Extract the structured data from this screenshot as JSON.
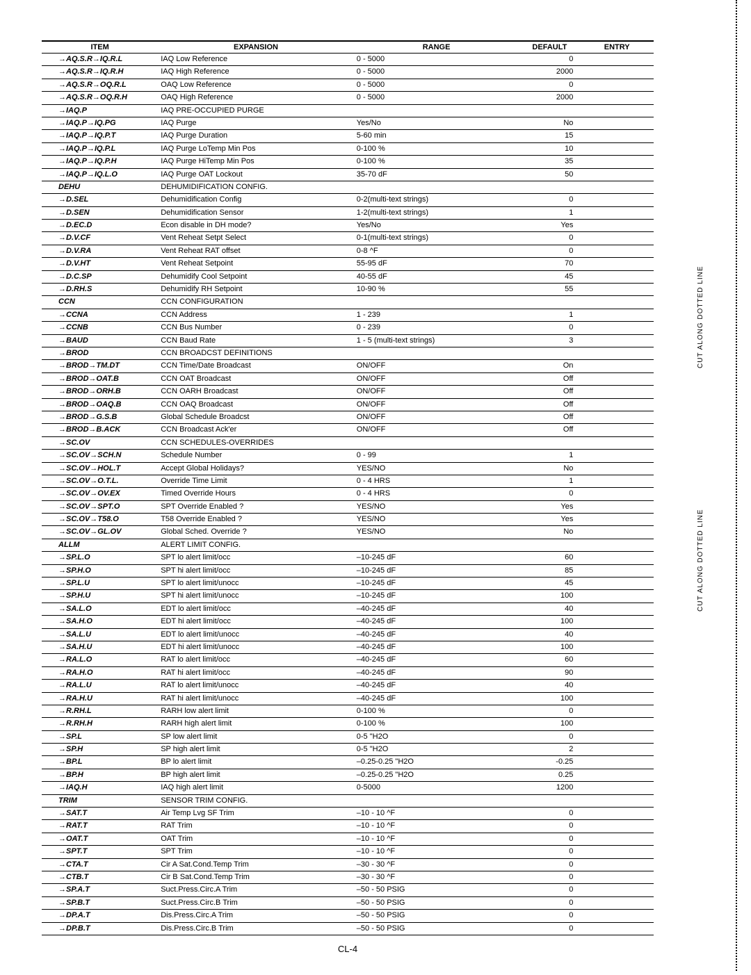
{
  "page_number": "CL-4",
  "cut_label": "CUT ALONG DOTTED LINE",
  "columns": [
    "ITEM",
    "EXPANSION",
    "RANGE",
    "DEFAULT",
    "ENTRY"
  ],
  "rows": [
    {
      "item": "→AQ.S.R→IQ.R.L",
      "exp": "IAQ Low Reference",
      "range": "0 - 5000",
      "def": "0"
    },
    {
      "item": "→AQ.S.R→IQ.R.H",
      "exp": "IAQ High Reference",
      "range": "0 - 5000",
      "def": "2000"
    },
    {
      "item": "→AQ.S.R→OQ.R.L",
      "exp": "OAQ Low Reference",
      "range": "0 - 5000",
      "def": "0"
    },
    {
      "item": "→AQ.S.R→OQ.R.H",
      "exp": "OAQ High Reference",
      "range": "0 - 5000",
      "def": "2000"
    },
    {
      "item": "→IAQ.P",
      "exp": "IAQ PRE-OCCUPIED PURGE",
      "range": "",
      "def": ""
    },
    {
      "item": "→IAQ.P→IQ.PG",
      "exp": "IAQ Purge",
      "range": "Yes/No",
      "def": "No"
    },
    {
      "item": "→IAQ.P→IQ.P.T",
      "exp": "IAQ Purge Duration",
      "range": "5-60 min",
      "def": "15"
    },
    {
      "item": "→IAQ.P→IQ.P.L",
      "exp": "IAQ Purge LoTemp Min Pos",
      "range": "0-100 %",
      "def": "10"
    },
    {
      "item": "→IAQ.P→IQ.P.H",
      "exp": "IAQ Purge HiTemp Min Pos",
      "range": "0-100 %",
      "def": "35"
    },
    {
      "item": "→IAQ.P→IQ.L.O",
      "exp": "IAQ Purge OAT Lockout",
      "range": "35-70 dF",
      "def": "50"
    },
    {
      "item": "DEHU",
      "exp": "DEHUMIDIFICATION CONFIG.",
      "range": "",
      "def": ""
    },
    {
      "item": "→D.SEL",
      "exp": "Dehumidification Config",
      "range": "0-2(multi-text strings)",
      "def": "0"
    },
    {
      "item": "→D.SEN",
      "exp": "Dehumidification Sensor",
      "range": "1-2(multi-text strings)",
      "def": "1"
    },
    {
      "item": "→D.EC.D",
      "exp": "Econ disable in DH mode?",
      "range": "Yes/No",
      "def": "Yes"
    },
    {
      "item": "→D.V.CF",
      "exp": "Vent Reheat Setpt Select",
      "range": "0-1(multi-text strings)",
      "def": "0"
    },
    {
      "item": "→D.V.RA",
      "exp": "Vent Reheat RAT offset",
      "range": "0-8 ^F",
      "def": "0"
    },
    {
      "item": "→D.V.HT",
      "exp": "Vent Reheat Setpoint",
      "range": "55-95 dF",
      "def": "70"
    },
    {
      "item": "→D.C.SP",
      "exp": "Dehumidify Cool Setpoint",
      "range": "40-55 dF",
      "def": "45"
    },
    {
      "item": "→D.RH.S",
      "exp": "Dehumidify RH Setpoint",
      "range": "10-90 %",
      "def": "55"
    },
    {
      "item": "CCN",
      "exp": "CCN CONFIGURATION",
      "range": "",
      "def": ""
    },
    {
      "item": "→CCNA",
      "exp": "CCN Address",
      "range": "1 - 239",
      "def": "1"
    },
    {
      "item": "→CCNB",
      "exp": "CCN Bus Number",
      "range": "0 - 239",
      "def": "0"
    },
    {
      "item": "→BAUD",
      "exp": "CCN Baud Rate",
      "range": "1 - 5 (multi-text strings)",
      "def": "3"
    },
    {
      "item": "→BROD",
      "exp": "CCN BROADCST DEFINITIONS",
      "range": "",
      "def": ""
    },
    {
      "item": "→BROD→TM.DT",
      "exp": "CCN Time/Date Broadcast",
      "range": "ON/OFF",
      "def": "On"
    },
    {
      "item": "→BROD→OAT.B",
      "exp": "CCN OAT Broadcast",
      "range": "ON/OFF",
      "def": "Off"
    },
    {
      "item": "→BROD→ORH.B",
      "exp": "CCN OARH Broadcast",
      "range": "ON/OFF",
      "def": "Off"
    },
    {
      "item": "→BROD→OAQ.B",
      "exp": "CCN OAQ Broadcast",
      "range": "ON/OFF",
      "def": "Off"
    },
    {
      "item": "→BROD→G.S.B",
      "exp": "Global Schedule Broadcst",
      "range": "ON/OFF",
      "def": "Off"
    },
    {
      "item": "→BROD→B.ACK",
      "exp": "CCN Broadcast Ack'er",
      "range": "ON/OFF",
      "def": "Off"
    },
    {
      "item": "→SC.OV",
      "exp": "CCN SCHEDULES-OVERRIDES",
      "range": "",
      "def": ""
    },
    {
      "item": "→SC.OV→SCH.N",
      "exp": "Schedule Number",
      "range": "0 - 99",
      "def": "1"
    },
    {
      "item": "→SC.OV→HOL.T",
      "exp": "Accept Global Holidays?",
      "range": "YES/NO",
      "def": "No"
    },
    {
      "item": "→SC.OV→O.T.L.",
      "exp": "Override Time Limit",
      "range": "0 - 4 HRS",
      "def": "1"
    },
    {
      "item": "→SC.OV→OV.EX",
      "exp": "Timed Override Hours",
      "range": "0 - 4 HRS",
      "def": "0"
    },
    {
      "item": "→SC.OV→SPT.O",
      "exp": "SPT Override Enabled ?",
      "range": "YES/NO",
      "def": "Yes"
    },
    {
      "item": "→SC.OV→T58.O",
      "exp": "T58 Override Enabled ?",
      "range": "YES/NO",
      "def": "Yes"
    },
    {
      "item": "→SC.OV→GL.OV",
      "exp": "Global Sched. Override ?",
      "range": "YES/NO",
      "def": "No"
    },
    {
      "item": "ALLM",
      "exp": "ALERT LIMIT CONFIG.",
      "range": "",
      "def": ""
    },
    {
      "item": "→SP.L.O",
      "exp": "SPT lo alert limit/occ",
      "range": "–10-245 dF",
      "def": "60"
    },
    {
      "item": "→SP.H.O",
      "exp": "SPT hi alert limit/occ",
      "range": "–10-245 dF",
      "def": "85"
    },
    {
      "item": "→SP.L.U",
      "exp": "SPT lo alert limit/unocc",
      "range": "–10-245 dF",
      "def": "45"
    },
    {
      "item": "→SP.H.U",
      "exp": "SPT hi alert limit/unocc",
      "range": "–10-245 dF",
      "def": "100"
    },
    {
      "item": "→SA.L.O",
      "exp": "EDT lo alert limit/occ",
      "range": "–40-245 dF",
      "def": "40"
    },
    {
      "item": "→SA.H.O",
      "exp": "EDT hi alert limit/occ",
      "range": "–40-245 dF",
      "def": "100"
    },
    {
      "item": "→SA.L.U",
      "exp": "EDT lo alert limit/unocc",
      "range": "–40-245 dF",
      "def": "40"
    },
    {
      "item": "→SA.H.U",
      "exp": "EDT hi alert limit/unocc",
      "range": "–40-245 dF",
      "def": "100"
    },
    {
      "item": "→RA.L.O",
      "exp": "RAT lo alert limit/occ",
      "range": "–40-245 dF",
      "def": "60"
    },
    {
      "item": "→RA.H.O",
      "exp": "RAT hi alert limit/occ",
      "range": "–40-245 dF",
      "def": "90"
    },
    {
      "item": "→RA.L.U",
      "exp": "RAT lo alert limit/unocc",
      "range": "–40-245 dF",
      "def": "40"
    },
    {
      "item": "→RA.H.U",
      "exp": "RAT hi alert limit/unocc",
      "range": "–40-245 dF",
      "def": "100"
    },
    {
      "item": "→R.RH.L",
      "exp": "RARH low alert limit",
      "range": "0-100 %",
      "def": "0"
    },
    {
      "item": "→R.RH.H",
      "exp": "RARH high alert limit",
      "range": "0-100 %",
      "def": "100"
    },
    {
      "item": "→SP.L",
      "exp": "SP low alert limit",
      "range": "0-5 \"H2O",
      "def": "0"
    },
    {
      "item": "→SP.H",
      "exp": "SP high alert limit",
      "range": "0-5 \"H2O",
      "def": "2"
    },
    {
      "item": "→BP.L",
      "exp": "BP lo alert limit",
      "range": "–0.25-0.25 \"H2O",
      "def": "-0.25"
    },
    {
      "item": "→BP.H",
      "exp": "BP high alert limit",
      "range": "–0.25-0.25 \"H2O",
      "def": "0.25"
    },
    {
      "item": "→IAQ.H",
      "exp": "IAQ high alert limit",
      "range": "0-5000",
      "def": "1200"
    },
    {
      "item": "TRIM",
      "exp": "SENSOR TRIM CONFIG.",
      "range": "",
      "def": ""
    },
    {
      "item": "→SAT.T",
      "exp": "Air Temp Lvg SF Trim",
      "range": "–10 - 10 ^F",
      "def": "0"
    },
    {
      "item": "→RAT.T",
      "exp": "RAT Trim",
      "range": "–10 - 10 ^F",
      "def": "0"
    },
    {
      "item": "→OAT.T",
      "exp": "OAT Trim",
      "range": "–10 - 10 ^F",
      "def": "0"
    },
    {
      "item": "→SPT.T",
      "exp": "SPT Trim",
      "range": "–10 - 10 ^F",
      "def": "0"
    },
    {
      "item": "→CTA.T",
      "exp": "Cir A Sat.Cond.Temp Trim",
      "range": "–30 - 30 ^F",
      "def": "0"
    },
    {
      "item": "→CTB.T",
      "exp": "Cir B Sat.Cond.Temp Trim",
      "range": "–30 - 30 ^F",
      "def": "0"
    },
    {
      "item": "→SP.A.T",
      "exp": "Suct.Press.Circ.A Trim",
      "range": "–50 - 50 PSIG",
      "def": "0"
    },
    {
      "item": "→SP.B.T",
      "exp": "Suct.Press.Circ.B Trim",
      "range": "–50 - 50 PSIG",
      "def": "0"
    },
    {
      "item": "→DP.A.T",
      "exp": "Dis.Press.Circ.A Trim",
      "range": "–50 - 50 PSIG",
      "def": "0"
    },
    {
      "item": "→DP.B.T",
      "exp": "Dis.Press.Circ.B Trim",
      "range": "–50 - 50 PSIG",
      "def": "0"
    }
  ]
}
